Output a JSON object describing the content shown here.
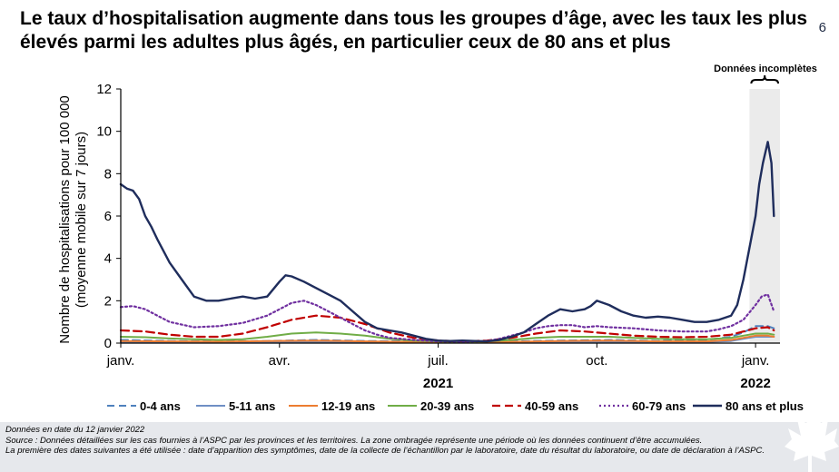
{
  "title": "Le taux d’hospitalisation augmente dans tous les groupes d’âge, avec les taux les plus élevés parmi les adultes plus âgés, en particulier ceux de 80 ans et plus",
  "footer": {
    "line1": "Données en date du 12 janvier 2022",
    "line2": "Source : Données détaillées sur les cas fournies à l’ASPC par les provinces et les territoires. La zone ombragée représente une période où les données continuent d’être accumulées.",
    "line3": "La première des dates suivantes a été utilisée : date d’apparition des symptômes, date de la collecte de l’échantillon par le laboratoire, date du résultat du laboratoire, ou date de déclaration à l’ASPC.",
    "page_number": "6"
  },
  "chart_data": {
    "type": "line",
    "ylabel_line1": "Nombre de hospitalisations  pour 100 000",
    "ylabel_line2": "(moyenne  mobile sur 7 jours)",
    "ylim": [
      0,
      12
    ],
    "yticks": [
      "0",
      "2",
      "4",
      "6",
      "8",
      "10",
      "12"
    ],
    "xlim_weeks": [
      0,
      54
    ],
    "xticks": [
      {
        "label": "janv.",
        "week": 0
      },
      {
        "label": "avr.",
        "week": 13
      },
      {
        "label": "juil.",
        "week": 26
      },
      {
        "label": "oct.",
        "week": 39
      },
      {
        "label": "janv.",
        "week": 52
      }
    ],
    "year_labels": [
      {
        "label": "2021",
        "week": 26
      },
      {
        "label": "2022",
        "week": 52
      }
    ],
    "shaded_region_weeks": [
      51.5,
      54
    ],
    "incomplete_label": "Données incomplètes",
    "grid": false,
    "legend_position": "bottom",
    "series": [
      {
        "name": "0-4 ans",
        "color": "#4f81bd",
        "dash": "8,5",
        "width": 2,
        "x": [
          0,
          4,
          8,
          12,
          16,
          20,
          24,
          28,
          32,
          36,
          40,
          44,
          48,
          50,
          51,
          52,
          53,
          53.5
        ],
        "y": [
          0.15,
          0.1,
          0.08,
          0.1,
          0.15,
          0.1,
          0.08,
          0.05,
          0.08,
          0.12,
          0.15,
          0.1,
          0.15,
          0.3,
          0.5,
          0.8,
          0.8,
          0.7
        ]
      },
      {
        "name": "5-11 ans",
        "color": "#6f8fc4",
        "dash": "",
        "width": 2,
        "x": [
          0,
          4,
          8,
          12,
          16,
          20,
          24,
          28,
          32,
          36,
          40,
          44,
          48,
          50,
          51,
          52,
          53,
          53.5
        ],
        "y": [
          0.05,
          0.05,
          0.04,
          0.05,
          0.06,
          0.05,
          0.04,
          0.03,
          0.04,
          0.05,
          0.06,
          0.05,
          0.05,
          0.1,
          0.2,
          0.3,
          0.3,
          0.3
        ]
      },
      {
        "name": "12-19 ans",
        "color": "#ed7d31",
        "dash": "",
        "width": 2,
        "x": [
          0,
          4,
          8,
          12,
          16,
          20,
          24,
          28,
          32,
          36,
          40,
          44,
          48,
          50,
          51,
          52,
          53,
          53.5
        ],
        "y": [
          0.1,
          0.08,
          0.07,
          0.1,
          0.12,
          0.08,
          0.05,
          0.04,
          0.06,
          0.1,
          0.12,
          0.08,
          0.08,
          0.15,
          0.25,
          0.35,
          0.35,
          0.3
        ]
      },
      {
        "name": "20-39 ans",
        "color": "#70ad47",
        "dash": "",
        "width": 2,
        "x": [
          0,
          2,
          4,
          6,
          8,
          10,
          12,
          14,
          16,
          18,
          20,
          22,
          24,
          26,
          28,
          30,
          32,
          34,
          36,
          38,
          40,
          42,
          44,
          46,
          48,
          50,
          51,
          52,
          53,
          53.5
        ],
        "y": [
          0.3,
          0.28,
          0.22,
          0.18,
          0.15,
          0.18,
          0.3,
          0.45,
          0.5,
          0.45,
          0.35,
          0.2,
          0.12,
          0.08,
          0.06,
          0.08,
          0.15,
          0.25,
          0.3,
          0.3,
          0.3,
          0.25,
          0.2,
          0.18,
          0.18,
          0.25,
          0.35,
          0.45,
          0.45,
          0.4
        ]
      },
      {
        "name": "40-59 ans",
        "color": "#c00000",
        "dash": "9,5",
        "width": 2.2,
        "x": [
          0,
          2,
          4,
          6,
          8,
          10,
          12,
          14,
          16,
          18,
          20,
          22,
          24,
          26,
          28,
          30,
          32,
          34,
          36,
          38,
          40,
          42,
          44,
          46,
          48,
          50,
          51,
          52,
          53,
          53.5
        ],
        "y": [
          0.6,
          0.55,
          0.4,
          0.3,
          0.3,
          0.45,
          0.75,
          1.1,
          1.3,
          1.2,
          0.9,
          0.5,
          0.25,
          0.12,
          0.08,
          0.12,
          0.25,
          0.45,
          0.6,
          0.55,
          0.45,
          0.35,
          0.3,
          0.28,
          0.3,
          0.4,
          0.55,
          0.7,
          0.75,
          0.6
        ]
      },
      {
        "name": "60-79 ans",
        "color": "#7030a0",
        "dash": "2,3",
        "width": 2.2,
        "x": [
          0,
          1,
          2,
          3,
          4,
          6,
          8,
          10,
          12,
          13,
          14,
          15,
          16,
          17,
          18,
          19,
          20,
          21,
          22,
          24,
          26,
          28,
          30,
          31,
          32,
          33,
          34,
          35,
          36,
          37,
          38,
          39,
          40,
          42,
          44,
          46,
          48,
          49,
          50,
          51,
          52,
          52.5,
          53,
          53.5
        ],
        "y": [
          1.7,
          1.75,
          1.6,
          1.3,
          1.0,
          0.75,
          0.8,
          0.95,
          1.3,
          1.6,
          1.9,
          2.0,
          1.8,
          1.5,
          1.2,
          0.9,
          0.6,
          0.4,
          0.25,
          0.15,
          0.08,
          0.06,
          0.1,
          0.2,
          0.35,
          0.5,
          0.7,
          0.8,
          0.85,
          0.85,
          0.75,
          0.8,
          0.75,
          0.7,
          0.6,
          0.55,
          0.55,
          0.65,
          0.8,
          1.1,
          1.8,
          2.2,
          2.3,
          1.5
        ]
      },
      {
        "name": "80 ans et plus",
        "color": "#1f2d5c",
        "dash": "",
        "width": 2.4,
        "x": [
          0,
          0.5,
          1,
          1.5,
          2,
          2.5,
          3,
          4,
          5,
          6,
          7,
          8,
          9,
          10,
          11,
          12,
          13,
          13.5,
          14,
          15,
          16,
          17,
          18,
          19,
          20,
          21,
          22,
          23,
          24,
          25,
          26,
          27,
          28,
          29,
          30,
          31,
          32,
          33,
          34,
          35,
          36,
          37,
          38,
          38.5,
          39,
          40,
          41,
          42,
          43,
          44,
          45,
          46,
          47,
          48,
          49,
          50,
          50.5,
          51,
          51.5,
          52,
          52.3,
          52.6,
          53,
          53.3,
          53.5
        ],
        "y": [
          7.5,
          7.3,
          7.2,
          6.8,
          6.0,
          5.5,
          4.9,
          3.8,
          3.0,
          2.2,
          2.0,
          2.0,
          2.1,
          2.2,
          2.1,
          2.2,
          2.9,
          3.2,
          3.15,
          2.9,
          2.6,
          2.3,
          2.0,
          1.5,
          1.0,
          0.7,
          0.6,
          0.5,
          0.35,
          0.2,
          0.12,
          0.1,
          0.12,
          0.1,
          0.08,
          0.15,
          0.3,
          0.5,
          0.9,
          1.3,
          1.6,
          1.5,
          1.6,
          1.75,
          2.0,
          1.8,
          1.5,
          1.3,
          1.2,
          1.25,
          1.2,
          1.1,
          1.0,
          1.0,
          1.1,
          1.3,
          1.8,
          3.0,
          4.5,
          6.0,
          7.5,
          8.5,
          9.5,
          8.5,
          6.0
        ]
      }
    ]
  }
}
